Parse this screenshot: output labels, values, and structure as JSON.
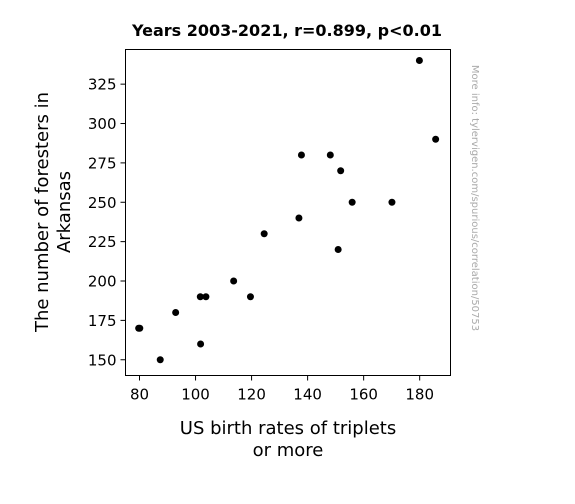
{
  "chart_data": {
    "type": "scatter",
    "title": "Years 2003-2021, r=0.899, p<0.01",
    "xlabel": "US birth rates of triplets or more",
    "ylabel": "The number of foresters in Arkansas",
    "watermark": "More info: tylervigen.com/spurious/correlation/50753",
    "xlim": [
      75,
      191
    ],
    "ylim": [
      140,
      347
    ],
    "xticks": [
      80,
      100,
      120,
      140,
      160,
      180
    ],
    "yticks": [
      150,
      175,
      200,
      225,
      250,
      275,
      300,
      325
    ],
    "grid": false,
    "marker_color": "#000000",
    "points": [
      {
        "x": 79.7,
        "y": 170
      },
      {
        "x": 80.1,
        "y": 170
      },
      {
        "x": 87.4,
        "y": 150
      },
      {
        "x": 92.9,
        "y": 180
      },
      {
        "x": 101.7,
        "y": 190
      },
      {
        "x": 101.8,
        "y": 160
      },
      {
        "x": 103.7,
        "y": 190
      },
      {
        "x": 113.6,
        "y": 200
      },
      {
        "x": 119.6,
        "y": 190
      },
      {
        "x": 124.5,
        "y": 230
      },
      {
        "x": 136.9,
        "y": 240
      },
      {
        "x": 137.8,
        "y": 280
      },
      {
        "x": 148.1,
        "y": 280
      },
      {
        "x": 150.9,
        "y": 220
      },
      {
        "x": 151.8,
        "y": 270
      },
      {
        "x": 155.9,
        "y": 250
      },
      {
        "x": 170.1,
        "y": 250
      },
      {
        "x": 179.9,
        "y": 340
      },
      {
        "x": 185.7,
        "y": 290
      }
    ]
  }
}
